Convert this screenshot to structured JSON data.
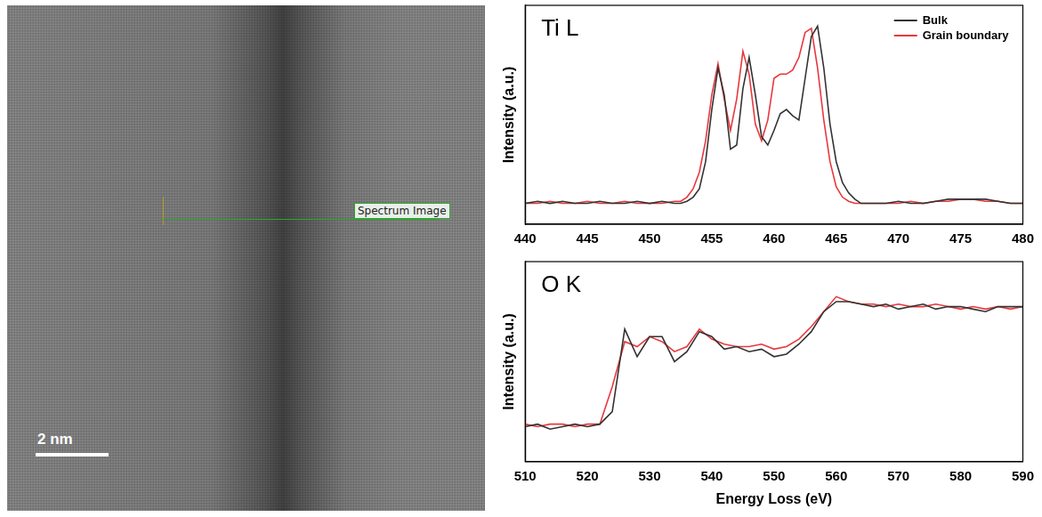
{
  "image": {
    "scale_bar": "2 nm",
    "annotation": "Spectrum Image"
  },
  "chart_data": [
    {
      "type": "line",
      "title": "Ti L",
      "y_label": "Intensity (a.u.)",
      "x": [
        440,
        441,
        442,
        443,
        444,
        445,
        446,
        447,
        448,
        449,
        450,
        451,
        452,
        452.5,
        453,
        453.5,
        454,
        454.5,
        455,
        455.5,
        456,
        456.5,
        457,
        457.5,
        458,
        458.5,
        459,
        459.5,
        460,
        460.5,
        461,
        461.5,
        462,
        462.5,
        463,
        463.5,
        464,
        464.5,
        465,
        465.5,
        466,
        466.5,
        467,
        468,
        469,
        470,
        471,
        472,
        473,
        474,
        475,
        476,
        477,
        478,
        479,
        480
      ],
      "series": [
        {
          "name": "Bulk",
          "color": "#333333",
          "values": [
            0.1,
            0.11,
            0.1,
            0.11,
            0.1,
            0.1,
            0.11,
            0.1,
            0.1,
            0.11,
            0.1,
            0.11,
            0.1,
            0.1,
            0.11,
            0.13,
            0.17,
            0.3,
            0.55,
            0.75,
            0.62,
            0.36,
            0.38,
            0.65,
            0.8,
            0.62,
            0.42,
            0.38,
            0.45,
            0.53,
            0.55,
            0.52,
            0.5,
            0.7,
            0.9,
            0.95,
            0.75,
            0.48,
            0.3,
            0.2,
            0.15,
            0.12,
            0.1,
            0.1,
            0.1,
            0.11,
            0.1,
            0.1,
            0.11,
            0.12,
            0.12,
            0.12,
            0.12,
            0.11,
            0.1,
            0.1
          ]
        },
        {
          "name": "Grain boundary",
          "color": "#e8383d",
          "values": [
            0.1,
            0.1,
            0.11,
            0.1,
            0.1,
            0.11,
            0.1,
            0.1,
            0.11,
            0.1,
            0.1,
            0.1,
            0.11,
            0.11,
            0.13,
            0.17,
            0.25,
            0.4,
            0.62,
            0.77,
            0.6,
            0.45,
            0.6,
            0.83,
            0.72,
            0.48,
            0.4,
            0.5,
            0.7,
            0.72,
            0.72,
            0.74,
            0.8,
            0.92,
            0.94,
            0.75,
            0.5,
            0.3,
            0.18,
            0.13,
            0.11,
            0.1,
            0.1,
            0.1,
            0.1,
            0.1,
            0.11,
            0.1,
            0.11,
            0.11,
            0.12,
            0.12,
            0.11,
            0.11,
            0.1,
            0.1
          ]
        }
      ],
      "xlim": [
        440,
        480
      ],
      "xticks": [
        440,
        445,
        450,
        455,
        460,
        465,
        470,
        475,
        480
      ],
      "ylim": [
        0,
        1.05
      ],
      "tick_labels": "x",
      "grid": false,
      "legend": "upper right"
    },
    {
      "type": "line",
      "title": "O K",
      "y_label": "Intensity (a.u.)",
      "x_label": "Energy Loss (eV)",
      "x": [
        510,
        512,
        514,
        516,
        518,
        520,
        522,
        524,
        526,
        528,
        530,
        532,
        534,
        536,
        538,
        540,
        542,
        544,
        546,
        548,
        550,
        552,
        554,
        556,
        558,
        560,
        562,
        564,
        566,
        568,
        570,
        572,
        574,
        576,
        578,
        580,
        582,
        584,
        586,
        588,
        590
      ],
      "series": [
        {
          "color": "#333333",
          "values": [
            0.14,
            0.15,
            0.13,
            0.14,
            0.15,
            0.14,
            0.15,
            0.2,
            0.53,
            0.42,
            0.5,
            0.5,
            0.4,
            0.44,
            0.52,
            0.5,
            0.45,
            0.46,
            0.44,
            0.45,
            0.42,
            0.43,
            0.47,
            0.52,
            0.6,
            0.64,
            0.64,
            0.63,
            0.62,
            0.63,
            0.61,
            0.62,
            0.63,
            0.61,
            0.62,
            0.62,
            0.61,
            0.6,
            0.62,
            0.62,
            0.62
          ]
        },
        {
          "color": "#e8383d",
          "values": [
            0.15,
            0.14,
            0.15,
            0.15,
            0.14,
            0.15,
            0.15,
            0.3,
            0.48,
            0.46,
            0.5,
            0.48,
            0.44,
            0.46,
            0.53,
            0.49,
            0.47,
            0.46,
            0.46,
            0.47,
            0.45,
            0.46,
            0.49,
            0.54,
            0.6,
            0.66,
            0.64,
            0.63,
            0.63,
            0.62,
            0.63,
            0.62,
            0.62,
            0.63,
            0.62,
            0.61,
            0.62,
            0.61,
            0.62,
            0.61,
            0.62
          ]
        }
      ],
      "xlim": [
        510,
        590
      ],
      "xticks": [
        510,
        520,
        530,
        540,
        550,
        560,
        570,
        580,
        590
      ],
      "ylim": [
        0,
        0.8
      ],
      "tick_labels": "x",
      "grid": false
    }
  ]
}
